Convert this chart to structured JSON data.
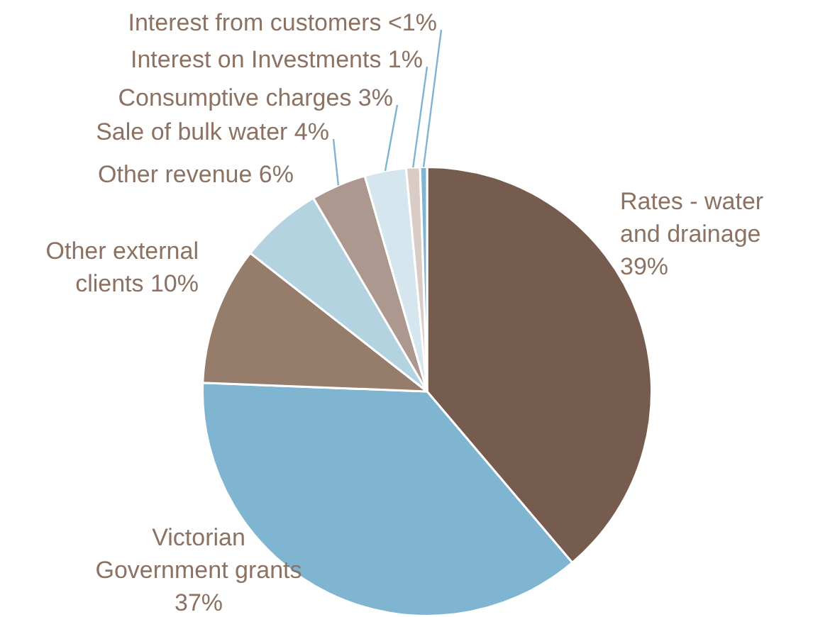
{
  "chart_data": {
    "type": "pie",
    "categories": [
      "Rates - water and drainage",
      "Victorian Government grants",
      "Other external clients",
      "Other revenue",
      "Sale of bulk water",
      "Consumptive charges",
      "Interest on Investments",
      "Interest from customers"
    ],
    "values": [
      39,
      37,
      10,
      6,
      4,
      3,
      1,
      0.5
    ],
    "value_labels": [
      "39%",
      "37%",
      "10%",
      "6%",
      "4%",
      "3%",
      "1%",
      "<1%"
    ],
    "colors": [
      "#765c4e",
      "#7fb5d1",
      "#957c6b",
      "#b3d3e0",
      "#ad9890",
      "#d6e6ee",
      "#d9ccc6",
      "#7fb5d1"
    ],
    "legend": false
  }
}
